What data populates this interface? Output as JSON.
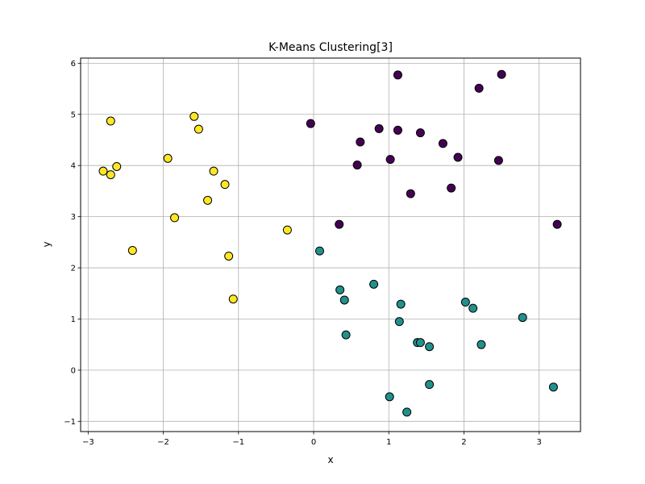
{
  "chart_data": {
    "type": "scatter",
    "title": "K-Means Clustering[3]",
    "xlabel": "x",
    "ylabel": "y",
    "xlim": [
      -3.1,
      3.55
    ],
    "ylim": [
      -1.2,
      6.1
    ],
    "xticks": [
      -3,
      -2,
      -1,
      0,
      1,
      2,
      3
    ],
    "xtick_labels": [
      "−3",
      "−2",
      "−1",
      "0",
      "1",
      "2",
      "3"
    ],
    "yticks": [
      -1,
      0,
      1,
      2,
      3,
      4,
      5,
      6
    ],
    "ytick_labels": [
      "−1",
      "0",
      "1",
      "2",
      "3",
      "4",
      "5",
      "6"
    ],
    "grid": true,
    "series": [
      {
        "color": "#440154",
        "points": [
          [
            1.12,
            5.77
          ],
          [
            2.2,
            5.51
          ],
          [
            2.5,
            5.78
          ],
          [
            -0.04,
            4.82
          ],
          [
            0.87,
            4.72
          ],
          [
            1.12,
            4.69
          ],
          [
            1.42,
            4.64
          ],
          [
            0.62,
            4.46
          ],
          [
            1.72,
            4.43
          ],
          [
            1.92,
            4.16
          ],
          [
            2.46,
            4.1
          ],
          [
            1.02,
            4.12
          ],
          [
            0.58,
            4.01
          ],
          [
            1.83,
            3.56
          ],
          [
            1.29,
            3.45
          ],
          [
            0.34,
            2.85
          ],
          [
            3.24,
            2.85
          ]
        ]
      },
      {
        "color": "#21918c",
        "points": [
          [
            0.08,
            2.33
          ],
          [
            0.35,
            1.57
          ],
          [
            0.8,
            1.68
          ],
          [
            0.41,
            1.37
          ],
          [
            1.16,
            1.29
          ],
          [
            2.02,
            1.33
          ],
          [
            2.12,
            1.21
          ],
          [
            2.78,
            1.03
          ],
          [
            1.14,
            0.95
          ],
          [
            0.43,
            0.69
          ],
          [
            1.38,
            0.54
          ],
          [
            1.42,
            0.54
          ],
          [
            1.54,
            0.46
          ],
          [
            2.23,
            0.5
          ],
          [
            1.54,
            -0.28
          ],
          [
            1.01,
            -0.52
          ],
          [
            1.24,
            -0.82
          ],
          [
            3.19,
            -0.33
          ]
        ]
      },
      {
        "color": "#fde725",
        "points": [
          [
            -2.7,
            4.87
          ],
          [
            -1.59,
            4.96
          ],
          [
            -1.53,
            4.71
          ],
          [
            -1.94,
            4.14
          ],
          [
            -2.62,
            3.98
          ],
          [
            -2.8,
            3.89
          ],
          [
            -2.7,
            3.82
          ],
          [
            -1.33,
            3.89
          ],
          [
            -1.18,
            3.63
          ],
          [
            -1.41,
            3.32
          ],
          [
            -1.85,
            2.98
          ],
          [
            -0.35,
            2.74
          ],
          [
            -2.41,
            2.34
          ],
          [
            -1.13,
            2.23
          ],
          [
            -1.07,
            1.39
          ]
        ]
      }
    ]
  }
}
